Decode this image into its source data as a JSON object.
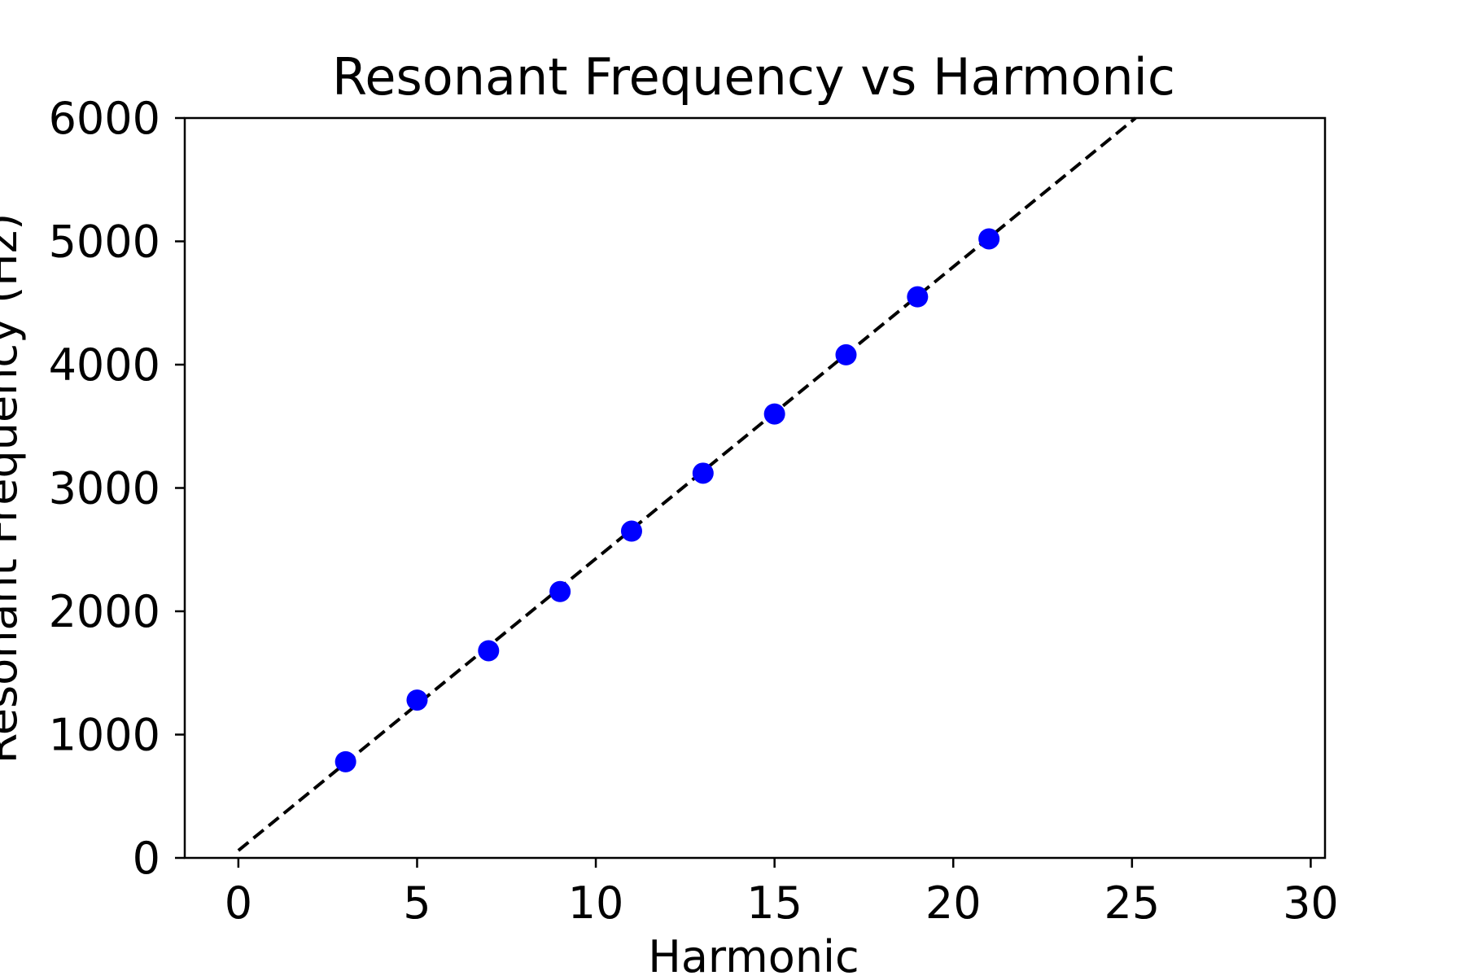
{
  "chart_data": {
    "type": "scatter",
    "title": "Resonant Frequency vs Harmonic",
    "xlabel": "Harmonic",
    "ylabel": "Resonant Frequency (Hz)",
    "xlim": [
      -1.5,
      30.4
    ],
    "ylim": [
      0,
      6000
    ],
    "x_ticks": [
      0,
      5,
      10,
      15,
      20,
      25,
      30
    ],
    "y_ticks": [
      0,
      1000,
      2000,
      3000,
      4000,
      5000,
      6000
    ],
    "grid": false,
    "series": [
      {
        "type": "scatter",
        "color": "#0000ff",
        "x": [
          3,
          5,
          7,
          9,
          11,
          13,
          15,
          17,
          19,
          21
        ],
        "y": [
          780,
          1280,
          1680,
          2160,
          2650,
          3120,
          3600,
          4080,
          4550,
          5020
        ]
      },
      {
        "type": "line",
        "style": "dashed",
        "color": "#000000",
        "x": [
          0,
          25.1
        ],
        "y": [
          60,
          6000
        ]
      }
    ]
  }
}
